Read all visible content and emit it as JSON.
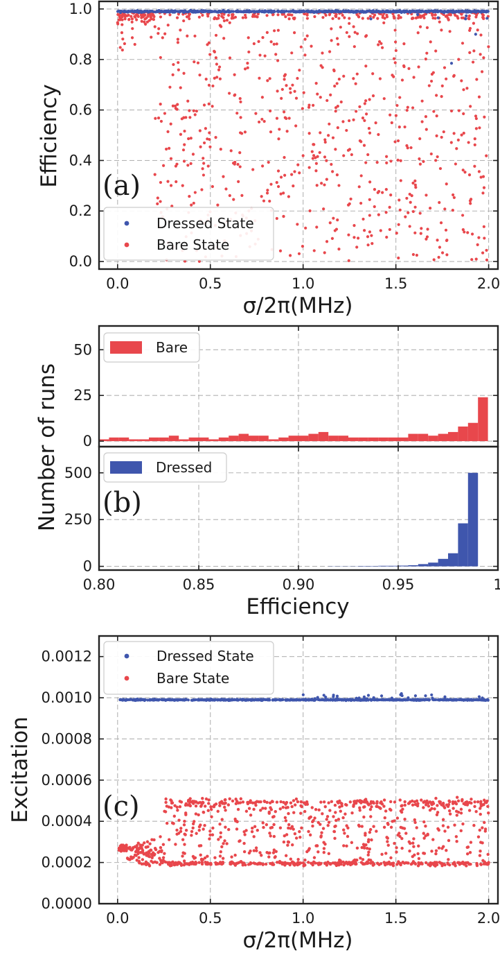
{
  "colors": {
    "dressed": "#3f56ad",
    "bare": "#e8474c",
    "grid": "#b3b3b3",
    "axis": "#222222"
  },
  "chart_data": [
    {
      "id": "a",
      "type": "scatter",
      "panel_tag": "(a)",
      "xlabel": "σ/2π(MHz)",
      "ylabel": "Efficiency",
      "xlim": [
        -0.1,
        2.05
      ],
      "ylim": [
        -0.03,
        1.03
      ],
      "xticks": [
        "0.0",
        "0.5",
        "1.0",
        "1.5",
        "2.0"
      ],
      "yticks": [
        "0.0",
        "0.2",
        "0.4",
        "0.6",
        "0.8",
        "1.0"
      ],
      "grid": true,
      "legend_position": "lower-left",
      "series": [
        {
          "name": "Dressed State",
          "color_key": "dressed",
          "n_points": 800,
          "description": "nearly constant at 0.99 across 0 to 2 MHz, a few points dipping to 0.95-0.97 above 1.2 MHz",
          "center": 0.99,
          "min": 0.78
        },
        {
          "name": "Bare State",
          "color_key": "bare",
          "n_points": 900,
          "description": "near 0.99 for sigma below 0.2 MHz, spreading uniformly between 0 and 1 for larger sigma",
          "max": 0.99,
          "min": 0.0
        }
      ]
    },
    {
      "id": "b-top",
      "type": "bar",
      "xlim": [
        0.8,
        1.0
      ],
      "ylim": [
        -3,
        63
      ],
      "xticks": [],
      "yticks": [
        "0",
        "25",
        "50"
      ],
      "grid": true,
      "legend_position": "top-left",
      "series": [
        {
          "name": "Bare",
          "color_key": "bare",
          "bin_width": 0.005,
          "bin_starts": [
            0.8,
            0.805,
            0.81,
            0.815,
            0.82,
            0.825,
            0.83,
            0.835,
            0.84,
            0.845,
            0.85,
            0.855,
            0.86,
            0.865,
            0.87,
            0.875,
            0.88,
            0.885,
            0.89,
            0.895,
            0.9,
            0.905,
            0.91,
            0.915,
            0.92,
            0.925,
            0.93,
            0.935,
            0.94,
            0.945,
            0.95,
            0.955,
            0.96,
            0.965,
            0.97,
            0.975,
            0.98,
            0.985,
            0.99
          ],
          "values": [
            1,
            2,
            2,
            1,
            1,
            2,
            2,
            3,
            1,
            2,
            2,
            1,
            2,
            3,
            4,
            3,
            3,
            1,
            2,
            3,
            3,
            4,
            5,
            3,
            3,
            2,
            2,
            2,
            2,
            2,
            2,
            4,
            4,
            3,
            4,
            5,
            8,
            10,
            24
          ]
        }
      ]
    },
    {
      "id": "b-bottom",
      "type": "bar",
      "panel_tag": "(b)",
      "xlabel": "Efficiency",
      "ylabel": "Number of runs",
      "xlim": [
        0.8,
        1.0
      ],
      "ylim": [
        -20,
        640
      ],
      "xticks": [
        "0.80",
        "0.85",
        "0.90",
        "0.95",
        "1"
      ],
      "yticks": [
        "0",
        "250",
        "500"
      ],
      "grid": true,
      "legend_position": "top-left",
      "series": [
        {
          "name": "Dressed",
          "color_key": "dressed",
          "bin_width": 0.005,
          "bin_starts": [
            0.915,
            0.92,
            0.925,
            0.93,
            0.935,
            0.94,
            0.945,
            0.95,
            0.955,
            0.96,
            0.965,
            0.97,
            0.975,
            0.98,
            0.985
          ],
          "values": [
            1,
            1,
            1,
            2,
            2,
            3,
            3,
            4,
            6,
            12,
            20,
            40,
            70,
            230,
            500
          ]
        }
      ]
    },
    {
      "id": "c",
      "type": "scatter",
      "panel_tag": "(c)",
      "xlabel": "σ/2π(MHz)",
      "ylabel": "Excitation",
      "xlim": [
        -0.1,
        2.05
      ],
      "ylim": [
        0,
        0.0013
      ],
      "xticks": [
        "0.0",
        "0.5",
        "1.0",
        "1.5",
        "2.0"
      ],
      "yticks": [
        "0.0000",
        "0.0002",
        "0.0004",
        "0.0006",
        "0.0008",
        "0.0010",
        "0.0012"
      ],
      "grid": true,
      "legend_position": "top-left",
      "series": [
        {
          "name": "Dressed State",
          "color_key": "dressed",
          "n_points": 800,
          "description": "constant at about 0.00099, a few points up to 0.00102 near 1.5 MHz",
          "center": 0.00099
        },
        {
          "name": "Bare State",
          "color_key": "bare",
          "n_points": 1100,
          "description": "clustered near 0.00027 at sigma 0, spreading between 0.00019 and 0.00051 for larger sigma, with a dense band at 0.0002",
          "min": 0.00019,
          "max": 0.00051
        }
      ]
    }
  ]
}
